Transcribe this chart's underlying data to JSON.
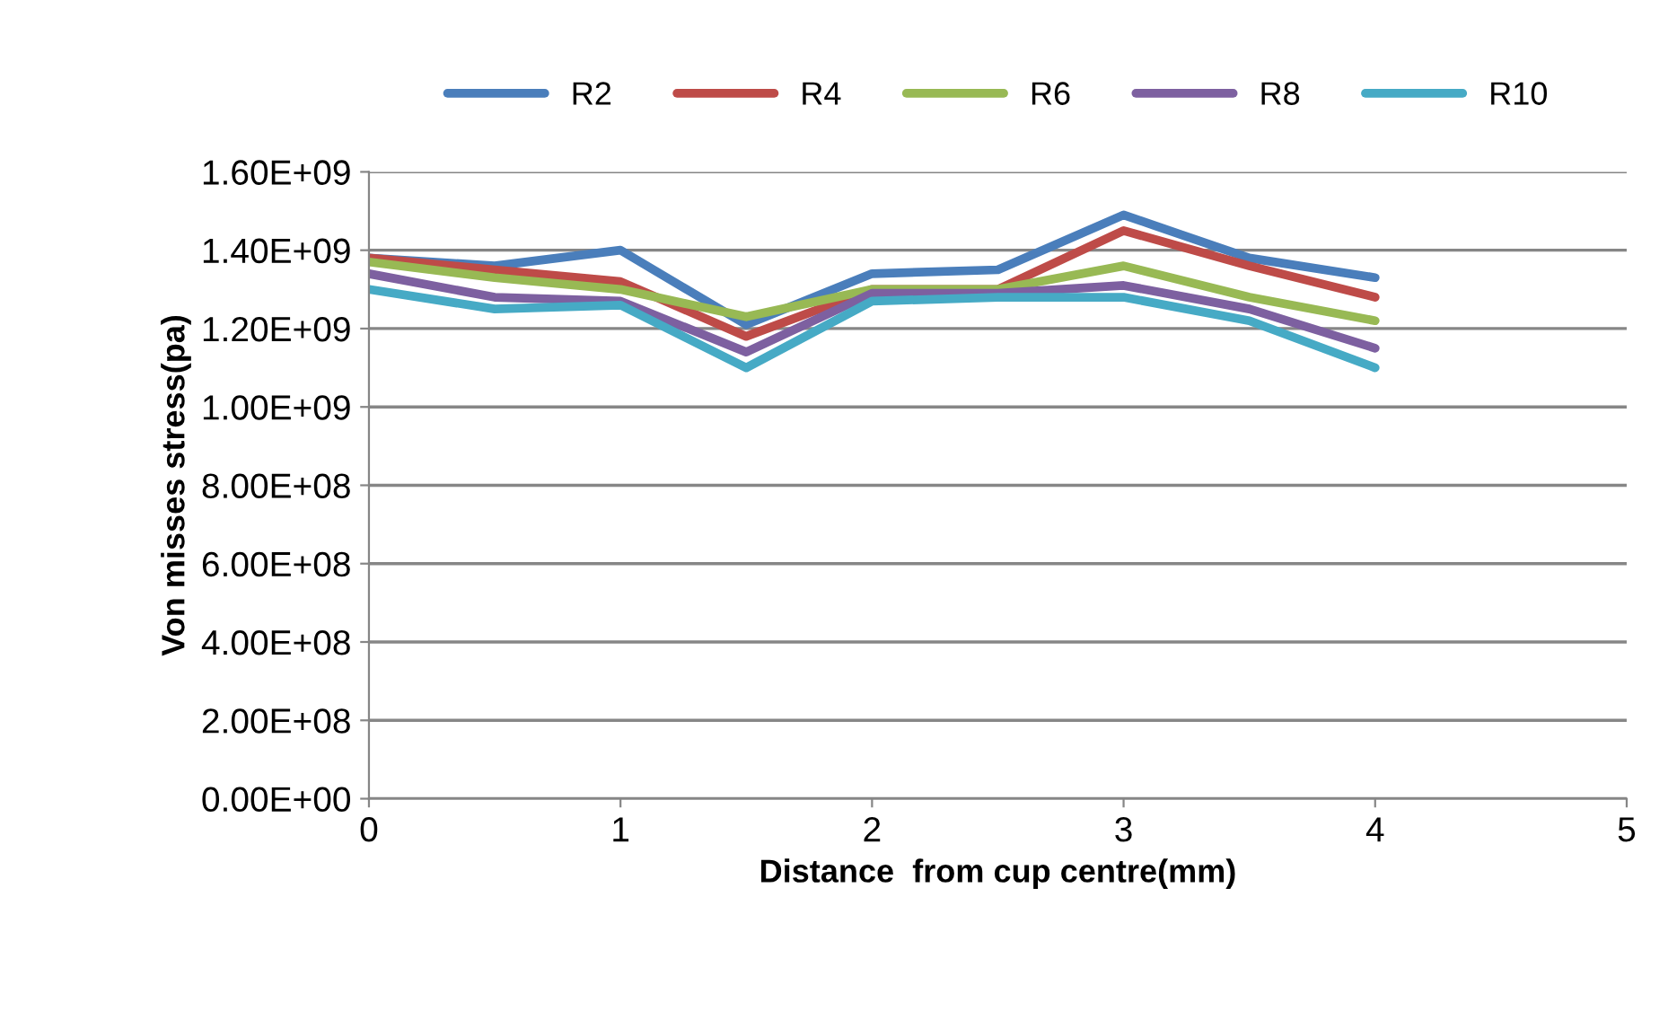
{
  "chart_data": {
    "type": "line",
    "xlabel": "Distance  from cup centre(mm)",
    "ylabel": "Von misses stress(pa)",
    "x": [
      0,
      0.5,
      1,
      1.5,
      2,
      2.5,
      3,
      3.5,
      4
    ],
    "series": [
      {
        "name": "R2",
        "color": "#4a7ebb",
        "values": [
          1380000000,
          1360000000,
          1400000000,
          1210000000,
          1340000000,
          1350000000,
          1490000000,
          1380000000,
          1330000000
        ]
      },
      {
        "name": "R4",
        "color": "#be4b48",
        "values": [
          1380000000,
          1350000000,
          1320000000,
          1180000000,
          1300000000,
          1300000000,
          1450000000,
          1360000000,
          1280000000
        ]
      },
      {
        "name": "R6",
        "color": "#98b954",
        "values": [
          1370000000,
          1330000000,
          1300000000,
          1230000000,
          1300000000,
          1300000000,
          1360000000,
          1280000000,
          1220000000
        ]
      },
      {
        "name": "R8",
        "color": "#7d60a0",
        "values": [
          1340000000,
          1280000000,
          1270000000,
          1140000000,
          1290000000,
          1290000000,
          1310000000,
          1250000000,
          1150000000
        ]
      },
      {
        "name": "R10",
        "color": "#46aac5",
        "values": [
          1300000000,
          1250000000,
          1260000000,
          1100000000,
          1270000000,
          1280000000,
          1280000000,
          1220000000,
          1100000000
        ]
      }
    ],
    "xlim": [
      0,
      5
    ],
    "xticks": [
      0,
      1,
      2,
      3,
      4,
      5
    ],
    "ylim": [
      0,
      1600000000
    ],
    "yticks": [
      {
        "value": 0,
        "label": "0.00E+00"
      },
      {
        "value": 200000000,
        "label": "2.00E+08"
      },
      {
        "value": 400000000,
        "label": "4.00E+08"
      },
      {
        "value": 600000000,
        "label": "6.00E+08"
      },
      {
        "value": 800000000,
        "label": "8.00E+08"
      },
      {
        "value": 1000000000,
        "label": "1.00E+09"
      },
      {
        "value": 1200000000,
        "label": "1.20E+09"
      },
      {
        "value": 1400000000,
        "label": "1.40E+09"
      },
      {
        "value": 1600000000,
        "label": "1.60E+09"
      }
    ],
    "grid": "y",
    "legend": "top",
    "marker": "none",
    "line_style": "solid"
  }
}
